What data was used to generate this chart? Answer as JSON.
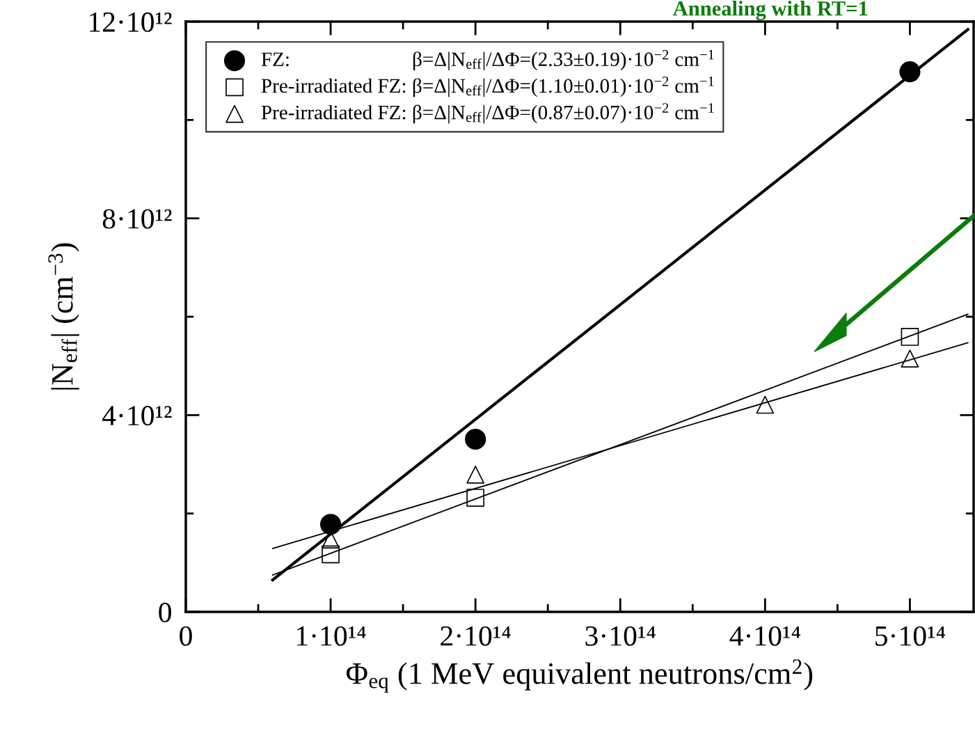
{
  "chart_data": {
    "type": "scatter",
    "xlabel": "Φ$_{eq}$ (1 MeV equivalent neutrons/cm$^{2}$)",
    "ylabel": "|N$_{eff}$| (cm$^{−3}$)",
    "annotations": [
      "Annealing with RT=1"
    ],
    "series": [
      {
        "name": "FZ:                        β=Δ|N$_{eff}$|/ΔΦ=(2.33±0.19)·10$^{−2}$ cm$^{−1}$",
        "color": "#000000",
        "marker": "circle",
        "x": [
          100000000000000.0,
          200000000000000.0,
          500000000000000.0
        ],
        "values": [
          1780000000000.0,
          3510000000000.0,
          10980000000000.0
        ]
      },
      {
        "name": "Pre-irradiated FZ: β=Δ|N$_{eff}$|/ΔΦ=(1.10±0.01)·10$^{−2}$ cm$^{−1}$",
        "color": "#000000",
        "marker": "square",
        "x": [
          100000000000000.0,
          200000000000000.0,
          500000000000000.0
        ],
        "values": [
          1170000000000.0,
          2320000000000.0,
          5590000000000.0
        ]
      },
      {
        "name": "Pre-irradiated FZ: β=Δ|N$_{eff}$|/ΔΦ=(0.87±0.07)·10$^{−2}$ cm$^{−1}$",
        "color": "#000000",
        "marker": "triangle",
        "x": [
          100000000000000.0,
          200000000000000.0,
          400000000000000.0,
          500000000000000.0
        ],
        "values": [
          1470000000000.0,
          2790000000000.0,
          4210000000000.0,
          5150000000000.0
        ]
      },
      {
        "type": "line",
        "color": "#000000",
        "x": [
          60000000000000.0,
          540000000000000.0
        ],
        "values": [
          650000000000.0,
          11840000000000.0
        ]
      },
      {
        "type": "line",
        "color": "#000000",
        "x": [
          60000000000000.0,
          540000000000000.0
        ],
        "values": [
          750000000000.0,
          6050000000000.0
        ]
      },
      {
        "type": "line",
        "color": "#000000",
        "x": [
          60000000000000.0,
          540000000000000.0
        ],
        "values": [
          1290000000000.0,
          5470000000000.0
        ]
      }
    ],
    "xlim": [
      0,
      544000000000000.0
    ],
    "xticks": [
      {
        "value": 0,
        "label": "0"
      },
      {
        "value": 50000000000000.0,
        "label": null
      },
      {
        "value": 100000000000000.0,
        "label": "1·10¹⁴"
      },
      {
        "value": 150000000000000.0,
        "label": null
      },
      {
        "value": 200000000000000.0,
        "label": "2·10¹⁴"
      },
      {
        "value": 250000000000000.0,
        "label": null
      },
      {
        "value": 300000000000000.0,
        "label": "3·10¹⁴"
      },
      {
        "value": 350000000000000.0,
        "label": null
      },
      {
        "value": 400000000000000.0,
        "label": "4·10¹⁴"
      },
      {
        "value": 450000000000000.0,
        "label": null
      },
      {
        "value": 500000000000000.0,
        "label": "5·10¹⁴"
      }
    ],
    "ylim": [
      0,
      12000000000000.0
    ],
    "yticks": [
      {
        "value": 0,
        "label": "0"
      },
      {
        "value": 2000000000000.0,
        "label": null
      },
      {
        "value": 4000000000000.0,
        "label": "4·10¹²"
      },
      {
        "value": 6000000000000.0,
        "label": null
      },
      {
        "value": 8000000000000.0,
        "label": "8·10¹²"
      },
      {
        "value": 10000000000000.0,
        "label": null
      },
      {
        "value": 12000000000000.0,
        "label": "12·10¹²"
      }
    ],
    "grid": false,
    "legend": "top left"
  }
}
